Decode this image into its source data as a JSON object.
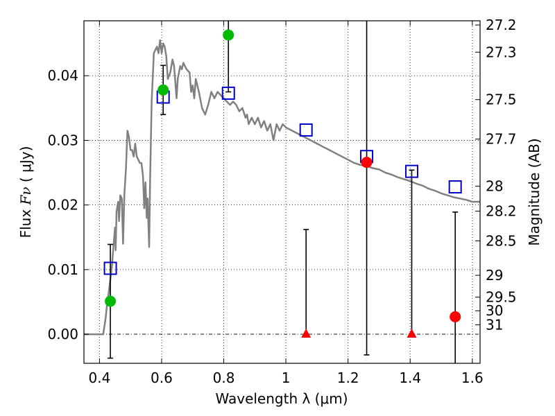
{
  "chart_data": {
    "type": "scatter",
    "xlabel": "Wavelength  λ (μm)",
    "ylabel": {
      "prefix": "Flux",
      "symbol": "Fν",
      "paren_open": "(",
      "unit": "μJy",
      "paren_close": ")"
    },
    "ylabel_right": "Magnitude (AB)",
    "xlim": [
      0.35,
      1.625
    ],
    "ylim": [
      -0.0045,
      0.0485
    ],
    "x_ticks": [
      {
        "value": 0.4,
        "label": "0.4"
      },
      {
        "value": 0.6,
        "label": "0.6"
      },
      {
        "value": 0.8,
        "label": "0.8"
      },
      {
        "value": 1.0,
        "label": "1"
      },
      {
        "value": 1.2,
        "label": "1.2"
      },
      {
        "value": 1.4,
        "label": "1.4"
      },
      {
        "value": 1.6,
        "label": "1.6"
      }
    ],
    "y_ticks": [
      {
        "value": 0.0,
        "label": "0.00"
      },
      {
        "value": 0.01,
        "label": "0.01"
      },
      {
        "value": 0.02,
        "label": "0.02"
      },
      {
        "value": 0.03,
        "label": "0.03"
      },
      {
        "value": 0.04,
        "label": "0.04"
      }
    ],
    "right_ticks": [
      {
        "flux": 0.04785,
        "label": "27.2"
      },
      {
        "flux": 0.04364,
        "label": "27.3"
      },
      {
        "flux": 0.0363,
        "label": "27.5"
      },
      {
        "flux": 0.0302,
        "label": "27.7"
      },
      {
        "flux": 0.02291,
        "label": "28"
      },
      {
        "flux": 0.01905,
        "label": "28.2"
      },
      {
        "flux": 0.01445,
        "label": "28.5"
      },
      {
        "flux": 0.00912,
        "label": "29"
      },
      {
        "flux": 0.00575,
        "label": "29.5"
      },
      {
        "flux": 0.00363,
        "label": "30"
      },
      {
        "flux": 0.00145,
        "label": "31"
      }
    ],
    "grid": true,
    "zero_line": true,
    "model_spectrum": {
      "color": "#808080",
      "points": [
        [
          0.35,
          0.0
        ],
        [
          0.412,
          0.0
        ],
        [
          0.42,
          0.0025
        ],
        [
          0.425,
          0.005
        ],
        [
          0.43,
          0.0065
        ],
        [
          0.435,
          0.0085
        ],
        [
          0.44,
          0.0105
        ],
        [
          0.445,
          0.0135
        ],
        [
          0.45,
          0.0165
        ],
        [
          0.452,
          0.013
        ],
        [
          0.455,
          0.019
        ],
        [
          0.46,
          0.0205
        ],
        [
          0.463,
          0.0175
        ],
        [
          0.467,
          0.0215
        ],
        [
          0.472,
          0.021
        ],
        [
          0.476,
          0.014
        ],
        [
          0.48,
          0.0215
        ],
        [
          0.485,
          0.0255
        ],
        [
          0.49,
          0.0315
        ],
        [
          0.495,
          0.0305
        ],
        [
          0.5,
          0.0285
        ],
        [
          0.505,
          0.0285
        ],
        [
          0.51,
          0.0275
        ],
        [
          0.515,
          0.0295
        ],
        [
          0.52,
          0.0275
        ],
        [
          0.525,
          0.027
        ],
        [
          0.53,
          0.0265
        ],
        [
          0.535,
          0.0265
        ],
        [
          0.54,
          0.0245
        ],
        [
          0.544,
          0.0195
        ],
        [
          0.548,
          0.0235
        ],
        [
          0.552,
          0.018
        ],
        [
          0.555,
          0.021
        ],
        [
          0.56,
          0.0135
        ],
        [
          0.563,
          0.024
        ],
        [
          0.568,
          0.036
        ],
        [
          0.575,
          0.0435
        ],
        [
          0.585,
          0.0445
        ],
        [
          0.59,
          0.0435
        ],
        [
          0.595,
          0.0455
        ],
        [
          0.6,
          0.0435
        ],
        [
          0.605,
          0.045
        ],
        [
          0.61,
          0.0445
        ],
        [
          0.615,
          0.043
        ],
        [
          0.62,
          0.0395
        ],
        [
          0.628,
          0.0405
        ],
        [
          0.635,
          0.0425
        ],
        [
          0.64,
          0.0415
        ],
        [
          0.645,
          0.0385
        ],
        [
          0.648,
          0.0365
        ],
        [
          0.652,
          0.0395
        ],
        [
          0.66,
          0.0415
        ],
        [
          0.665,
          0.041
        ],
        [
          0.67,
          0.042
        ],
        [
          0.68,
          0.041
        ],
        [
          0.69,
          0.0405
        ],
        [
          0.695,
          0.0375
        ],
        [
          0.7,
          0.0385
        ],
        [
          0.705,
          0.0365
        ],
        [
          0.71,
          0.0395
        ],
        [
          0.72,
          0.0375
        ],
        [
          0.73,
          0.035
        ],
        [
          0.74,
          0.034
        ],
        [
          0.75,
          0.0355
        ],
        [
          0.76,
          0.0375
        ],
        [
          0.77,
          0.0365
        ],
        [
          0.78,
          0.0375
        ],
        [
          0.79,
          0.037
        ],
        [
          0.8,
          0.0365
        ],
        [
          0.81,
          0.036
        ],
        [
          0.82,
          0.0355
        ],
        [
          0.83,
          0.036
        ],
        [
          0.84,
          0.0355
        ],
        [
          0.85,
          0.0345
        ],
        [
          0.86,
          0.035
        ],
        [
          0.87,
          0.0335
        ],
        [
          0.875,
          0.034
        ],
        [
          0.88,
          0.0325
        ],
        [
          0.89,
          0.0335
        ],
        [
          0.9,
          0.0325
        ],
        [
          0.91,
          0.0335
        ],
        [
          0.92,
          0.032
        ],
        [
          0.93,
          0.033
        ],
        [
          0.94,
          0.0315
        ],
        [
          0.95,
          0.0325
        ],
        [
          0.96,
          0.03
        ],
        [
          0.97,
          0.0325
        ],
        [
          0.98,
          0.0315
        ],
        [
          0.99,
          0.0325
        ],
        [
          1.0,
          0.032
        ],
        [
          1.02,
          0.0315
        ],
        [
          1.04,
          0.031
        ],
        [
          1.06,
          0.0305
        ],
        [
          1.08,
          0.03
        ],
        [
          1.1,
          0.0295
        ],
        [
          1.12,
          0.029
        ],
        [
          1.14,
          0.0285
        ],
        [
          1.16,
          0.028
        ],
        [
          1.18,
          0.0275
        ],
        [
          1.2,
          0.027
        ],
        [
          1.22,
          0.0265
        ],
        [
          1.24,
          0.0262
        ],
        [
          1.26,
          0.026
        ],
        [
          1.28,
          0.0257
        ],
        [
          1.3,
          0.0255
        ],
        [
          1.32,
          0.025
        ],
        [
          1.34,
          0.0247
        ],
        [
          1.36,
          0.0243
        ],
        [
          1.38,
          0.024
        ],
        [
          1.4,
          0.0237
        ],
        [
          1.42,
          0.0233
        ],
        [
          1.44,
          0.023
        ],
        [
          1.46,
          0.0225
        ],
        [
          1.48,
          0.0222
        ],
        [
          1.5,
          0.0218
        ],
        [
          1.52,
          0.0215
        ],
        [
          1.54,
          0.0212
        ],
        [
          1.56,
          0.021
        ],
        [
          1.58,
          0.0208
        ],
        [
          1.6,
          0.0205
        ],
        [
          1.625,
          0.0205
        ]
      ]
    },
    "model_photometry": {
      "color": "#0000cc",
      "points": [
        [
          0.435,
          0.0102
        ],
        [
          0.605,
          0.0367
        ],
        [
          0.815,
          0.0373
        ],
        [
          1.065,
          0.0316
        ],
        [
          1.26,
          0.0275
        ],
        [
          1.405,
          0.0252
        ],
        [
          1.545,
          0.0228
        ]
      ]
    },
    "detections": {
      "color": "#00bb00",
      "points": [
        {
          "x": 0.435,
          "y": 0.0051,
          "err": 0.0088
        },
        {
          "x": 0.605,
          "y": 0.0378,
          "err": 0.0038
        },
        {
          "x": 0.815,
          "y": 0.0463,
          "err": 0.0088
        }
      ]
    },
    "nondetections": {
      "color": "#ff0000",
      "points": [
        {
          "x": 1.26,
          "y": 0.0266,
          "err": 0.0298
        },
        {
          "x": 1.545,
          "y": 0.0027,
          "err": 0.0162
        }
      ]
    },
    "upper_limits": {
      "color": "#ff0000",
      "points": [
        {
          "x": 1.065,
          "y": 0.0,
          "err_top": 0.0162
        },
        {
          "x": 1.405,
          "y": 0.0,
          "err_top": 0.0254
        }
      ]
    }
  }
}
